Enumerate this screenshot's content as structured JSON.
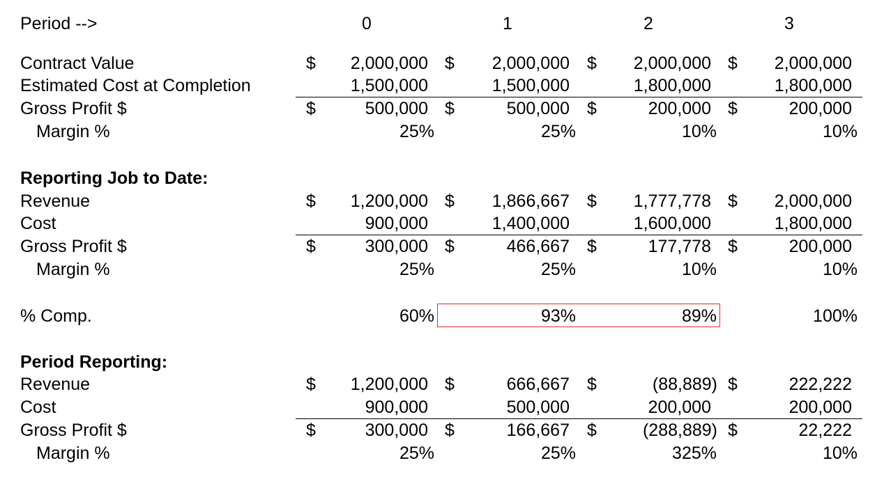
{
  "header": {
    "label": "Period -->",
    "periods": [
      "0",
      "1",
      "2",
      "3"
    ]
  },
  "contract": {
    "rows": [
      {
        "label": "Contract Value",
        "dollar": true,
        "values": [
          "2,000,000",
          "2,000,000",
          "2,000,000",
          "2,000,000"
        ]
      },
      {
        "label": "Estimated Cost at Completion",
        "dollar": false,
        "values": [
          "1,500,000",
          "1,500,000",
          "1,800,000",
          "1,800,000"
        ]
      },
      {
        "label": "Gross Profit $",
        "dollar": true,
        "values": [
          "500,000",
          "500,000",
          "200,000",
          "200,000"
        ]
      }
    ],
    "margin": {
      "label": "Margin %",
      "values": [
        "25%",
        "25%",
        "10%",
        "10%"
      ]
    }
  },
  "job_to_date": {
    "title": "Reporting Job to Date:",
    "rows": [
      {
        "label": "Revenue",
        "dollar": true,
        "values": [
          "1,200,000",
          "1,866,667",
          "1,777,778",
          "2,000,000"
        ]
      },
      {
        "label": "Cost",
        "dollar": false,
        "values": [
          "900,000",
          "1,400,000",
          "1,600,000",
          "1,800,000"
        ]
      },
      {
        "label": "Gross Profit $",
        "dollar": true,
        "values": [
          "300,000",
          "466,667",
          "177,778",
          "200,000"
        ]
      }
    ],
    "margin": {
      "label": "Margin %",
      "values": [
        "25%",
        "25%",
        "10%",
        "10%"
      ]
    }
  },
  "percent_complete": {
    "label": "% Comp.",
    "values": [
      "60%",
      "93%",
      "89%",
      "100%"
    ]
  },
  "period_reporting": {
    "title": "Period Reporting:",
    "rows": [
      {
        "label": "Revenue",
        "dollar": true,
        "values": [
          "1,200,000",
          "666,667",
          "(88,889)",
          "222,222"
        ]
      },
      {
        "label": "Cost",
        "dollar": false,
        "values": [
          "900,000",
          "500,000",
          "200,000",
          "200,000"
        ]
      },
      {
        "label": "Gross Profit $",
        "dollar": true,
        "values": [
          "300,000",
          "166,667",
          "(288,889)",
          "22,222"
        ]
      }
    ],
    "margin": {
      "label": "Margin %",
      "values": [
        "25%",
        "25%",
        "325%",
        "10%"
      ]
    }
  },
  "currency_symbol": "$",
  "highlight_color": "#d9302b"
}
